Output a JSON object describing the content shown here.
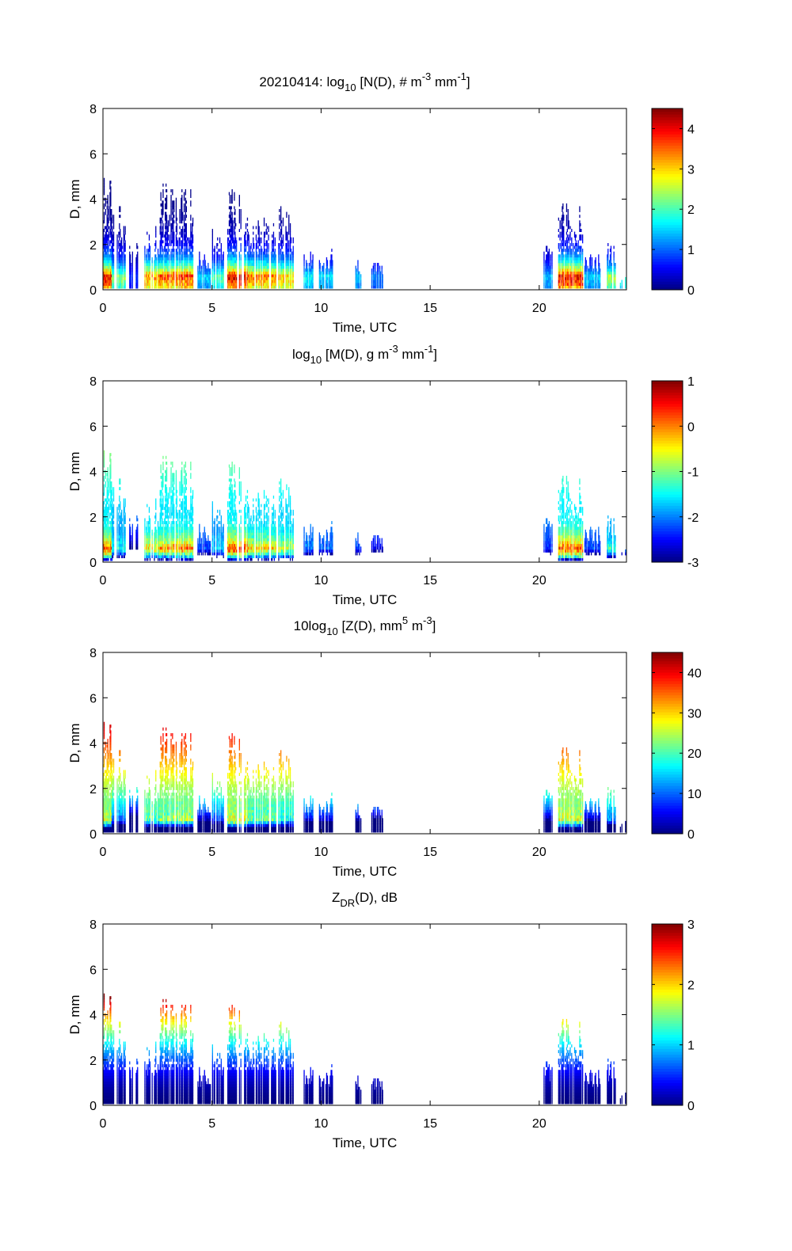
{
  "chart_data": [
    {
      "type": "heatmap",
      "title_parts": {
        "prefix": "20210414: log",
        "sub": "10",
        "mid": " [N(D), # m",
        "sup1": "-3",
        "mid2": " mm",
        "sup2": "-1",
        "end": "]"
      },
      "xlabel": "Time, UTC",
      "ylabel": "D, mm",
      "xlim": [
        0,
        24
      ],
      "ylim": [
        0,
        8
      ],
      "xticks": [
        "0",
        "5",
        "10",
        "15",
        "20"
      ],
      "yticks": [
        "0",
        "2",
        "4",
        "6",
        "8"
      ],
      "clim": [
        0,
        4.5
      ],
      "cticks": [
        "0",
        "1",
        "2",
        "3",
        "4"
      ],
      "colormap": "jet",
      "field": "N"
    },
    {
      "type": "heatmap",
      "title_parts": {
        "prefix": "log",
        "sub": "10",
        "mid": " [M(D), g m",
        "sup1": "-3",
        "mid2": " mm",
        "sup2": "-1",
        "end": "]"
      },
      "xlabel": "Time, UTC",
      "ylabel": "D, mm",
      "xlim": [
        0,
        24
      ],
      "ylim": [
        0,
        8
      ],
      "xticks": [
        "0",
        "5",
        "10",
        "15",
        "20"
      ],
      "yticks": [
        "0",
        "2",
        "4",
        "6",
        "8"
      ],
      "clim": [
        -3,
        1
      ],
      "cticks": [
        "-3",
        "-2",
        "-1",
        "0",
        "1"
      ],
      "colormap": "jet",
      "field": "M"
    },
    {
      "type": "heatmap",
      "title_parts": {
        "prefix": "10log",
        "sub": "10",
        "mid": " [Z(D),  mm",
        "sup1": "5",
        "mid2": " m",
        "sup2": "-3",
        "end": "]"
      },
      "xlabel": "Time, UTC",
      "ylabel": "D, mm",
      "xlim": [
        0,
        24
      ],
      "ylim": [
        0,
        8
      ],
      "xticks": [
        "0",
        "5",
        "10",
        "15",
        "20"
      ],
      "yticks": [
        "0",
        "2",
        "4",
        "6",
        "8"
      ],
      "clim": [
        0,
        45
      ],
      "cticks": [
        "0",
        "10",
        "20",
        "30",
        "40"
      ],
      "colormap": "jet",
      "field": "Z"
    },
    {
      "type": "heatmap",
      "title_parts": {
        "prefix": "Z",
        "sub": "DR",
        "mid": "(D), dB",
        "sup1": "",
        "mid2": "",
        "sup2": "",
        "end": ""
      },
      "xlabel": "Time, UTC",
      "ylabel": "D, mm",
      "xlim": [
        0,
        24
      ],
      "ylim": [
        0,
        8
      ],
      "xticks": [
        "0",
        "5",
        "10",
        "15",
        "20"
      ],
      "yticks": [
        "0",
        "2",
        "4",
        "6",
        "8"
      ],
      "clim": [
        0,
        3
      ],
      "cticks": [
        "0",
        "1",
        "2",
        "3"
      ],
      "colormap": "jet",
      "field": "ZDR"
    }
  ],
  "rain_events": [
    {
      "t_start": 0.0,
      "t_end": 0.4,
      "d_max": 5.0,
      "peak_logN": 4.2
    },
    {
      "t_start": 0.4,
      "t_end": 1.0,
      "d_max": 3.9,
      "peak_logN": 2.5
    },
    {
      "t_start": 1.2,
      "t_end": 1.6,
      "d_max": 2.1,
      "peak_logN": 0.8
    },
    {
      "t_start": 1.9,
      "t_end": 2.6,
      "d_max": 2.8,
      "peak_logN": 3.6
    },
    {
      "t_start": 2.6,
      "t_end": 3.2,
      "d_max": 4.8,
      "peak_logN": 3.8
    },
    {
      "t_start": 3.2,
      "t_end": 4.1,
      "d_max": 4.5,
      "peak_logN": 3.9
    },
    {
      "t_start": 4.3,
      "t_end": 4.9,
      "d_max": 1.8,
      "peak_logN": 1.6
    },
    {
      "t_start": 5.0,
      "t_end": 5.5,
      "d_max": 2.9,
      "peak_logN": 2.2
    },
    {
      "t_start": 5.7,
      "t_end": 6.6,
      "d_max": 4.5,
      "peak_logN": 4.3
    },
    {
      "t_start": 6.6,
      "t_end": 7.9,
      "d_max": 3.4,
      "peak_logN": 3.6
    },
    {
      "t_start": 8.0,
      "t_end": 8.7,
      "d_max": 3.7,
      "peak_logN": 3.3
    },
    {
      "t_start": 9.2,
      "t_end": 9.6,
      "d_max": 1.9,
      "peak_logN": 1.8
    },
    {
      "t_start": 9.9,
      "t_end": 10.5,
      "d_max": 1.8,
      "peak_logN": 1.7
    },
    {
      "t_start": 11.5,
      "t_end": 11.8,
      "d_max": 1.3,
      "peak_logN": 1.6
    },
    {
      "t_start": 12.3,
      "t_end": 12.8,
      "d_max": 1.2,
      "peak_logN": 1.2
    },
    {
      "t_start": 20.2,
      "t_end": 20.8,
      "d_max": 2.0,
      "peak_logN": 1.5
    },
    {
      "t_start": 20.8,
      "t_end": 22.0,
      "d_max": 4.1,
      "peak_logN": 4.3
    },
    {
      "t_start": 22.0,
      "t_end": 22.8,
      "d_max": 1.6,
      "peak_logN": 1.6
    },
    {
      "t_start": 23.1,
      "t_end": 23.5,
      "d_max": 2.1,
      "peak_logN": 2.6
    },
    {
      "t_start": 23.7,
      "t_end": 24.0,
      "d_max": 0.6,
      "peak_logN": 2.0
    }
  ]
}
